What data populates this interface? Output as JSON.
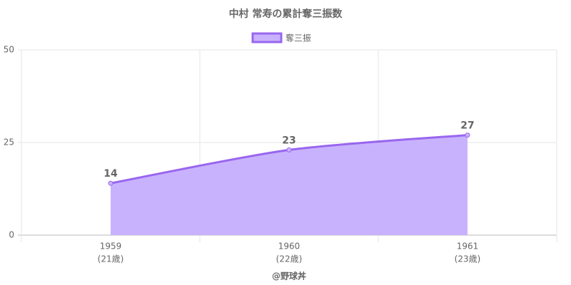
{
  "chart_data": {
    "type": "line",
    "title": "中村 常寿の累計奪三振数",
    "categories": [
      "1959",
      "1960",
      "1961"
    ],
    "category_sublabels": [
      "(21歳)",
      "(22歳)",
      "(23歳)"
    ],
    "x_label": "@野球丼",
    "series": [
      {
        "name": "奪三振",
        "color": "#9966ee",
        "fill": "#c8b2fd",
        "values": [
          14,
          23,
          27
        ]
      }
    ],
    "ylim": [
      0,
      50
    ],
    "yticks": [
      0,
      25,
      50
    ],
    "grid": true,
    "legend": "top",
    "data_labels": true
  }
}
